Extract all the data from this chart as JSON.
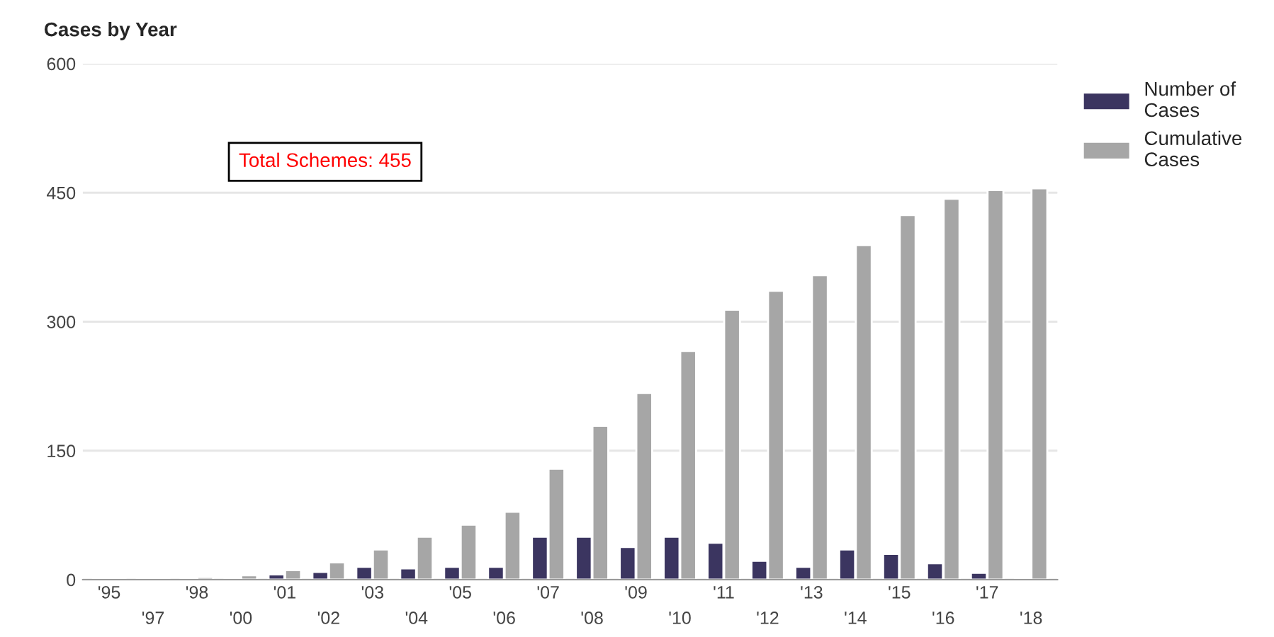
{
  "chart_data": {
    "type": "bar",
    "title": "Cases by Year",
    "categories": [
      "'95",
      "'97",
      "'98",
      "'00",
      "'01",
      "'02",
      "'03",
      "'04",
      "'05",
      "'06",
      "'07",
      "'08",
      "'09",
      "'10",
      "'11",
      "'12",
      "'13",
      "'14",
      "'15",
      "'16",
      "'17",
      "'18"
    ],
    "series": [
      {
        "name": "Number of Cases",
        "color": "#3b3560",
        "values": [
          1,
          1,
          1,
          2,
          6,
          9,
          15,
          13,
          15,
          15,
          50,
          50,
          38,
          50,
          43,
          22,
          15,
          35,
          30,
          19,
          8,
          2
        ]
      },
      {
        "name": "Cumulative Cases",
        "color": "#a6a6a6",
        "values": [
          1,
          2,
          3,
          5,
          11,
          20,
          35,
          50,
          64,
          79,
          129,
          179,
          217,
          266,
          314,
          336,
          354,
          389,
          424,
          443,
          453,
          455
        ]
      }
    ],
    "ylim": [
      0,
      600
    ],
    "yticks": [
      0,
      150,
      300,
      450,
      600
    ],
    "grid": "y",
    "legend": "top right",
    "annotations": [
      "Total Schemes: 455"
    ]
  }
}
